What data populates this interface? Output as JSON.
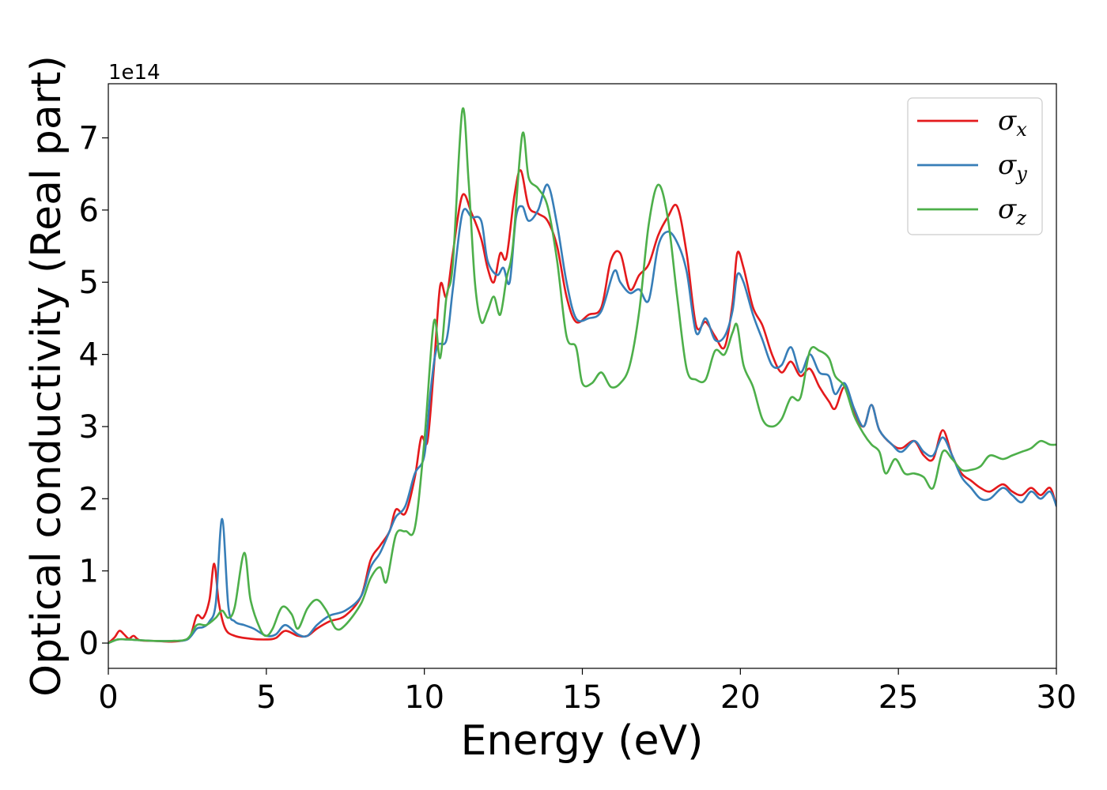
{
  "chart_data": {
    "type": "line",
    "xlabel": "Energy (eV)",
    "ylabel": "Optical conductivity (Real part)",
    "y_scale_label": "1e14",
    "y_multiplier": 100000000000000.0,
    "xlim": [
      0,
      30
    ],
    "ylim": [
      -0.35,
      7.75
    ],
    "xticks": [
      0,
      5,
      10,
      15,
      20,
      25,
      30
    ],
    "yticks": [
      0,
      1,
      2,
      3,
      4,
      5,
      6,
      7
    ],
    "grid": false,
    "legend_position": "top-right",
    "series": [
      {
        "name": "σx",
        "symbol": "σ",
        "subscript": "x",
        "color": "#e41a1c",
        "points": [
          [
            0,
            0
          ],
          [
            0.2,
            0.08
          ],
          [
            0.35,
            0.17
          ],
          [
            0.5,
            0.12
          ],
          [
            0.65,
            0.06
          ],
          [
            0.8,
            0.1
          ],
          [
            1.0,
            0.04
          ],
          [
            1.5,
            0.03
          ],
          [
            2.0,
            0.02
          ],
          [
            2.4,
            0.04
          ],
          [
            2.6,
            0.1
          ],
          [
            2.8,
            0.38
          ],
          [
            3.0,
            0.35
          ],
          [
            3.2,
            0.6
          ],
          [
            3.35,
            1.1
          ],
          [
            3.5,
            0.55
          ],
          [
            3.7,
            0.2
          ],
          [
            4.0,
            0.1
          ],
          [
            4.5,
            0.06
          ],
          [
            5.0,
            0.05
          ],
          [
            5.3,
            0.07
          ],
          [
            5.6,
            0.17
          ],
          [
            6.0,
            0.1
          ],
          [
            6.3,
            0.1
          ],
          [
            6.6,
            0.2
          ],
          [
            7.0,
            0.3
          ],
          [
            7.5,
            0.38
          ],
          [
            8.0,
            0.65
          ],
          [
            8.3,
            1.15
          ],
          [
            8.6,
            1.35
          ],
          [
            8.9,
            1.55
          ],
          [
            9.1,
            1.85
          ],
          [
            9.4,
            1.8
          ],
          [
            9.7,
            2.3
          ],
          [
            9.9,
            2.85
          ],
          [
            10.1,
            2.8
          ],
          [
            10.3,
            3.8
          ],
          [
            10.5,
            4.95
          ],
          [
            10.7,
            4.8
          ],
          [
            10.9,
            5.4
          ],
          [
            11.2,
            6.2
          ],
          [
            11.5,
            5.95
          ],
          [
            11.8,
            5.6
          ],
          [
            12.0,
            5.2
          ],
          [
            12.2,
            5.0
          ],
          [
            12.4,
            5.4
          ],
          [
            12.6,
            5.35
          ],
          [
            12.85,
            6.2
          ],
          [
            13.05,
            6.55
          ],
          [
            13.3,
            6.05
          ],
          [
            13.6,
            5.95
          ],
          [
            13.9,
            5.85
          ],
          [
            14.2,
            5.5
          ],
          [
            14.5,
            4.8
          ],
          [
            14.8,
            4.45
          ],
          [
            15.2,
            4.55
          ],
          [
            15.6,
            4.65
          ],
          [
            15.9,
            5.3
          ],
          [
            16.2,
            5.4
          ],
          [
            16.5,
            4.9
          ],
          [
            16.8,
            5.1
          ],
          [
            17.1,
            5.25
          ],
          [
            17.4,
            5.65
          ],
          [
            17.7,
            5.9
          ],
          [
            18.0,
            6.05
          ],
          [
            18.3,
            5.4
          ],
          [
            18.6,
            4.4
          ],
          [
            18.9,
            4.45
          ],
          [
            19.2,
            4.25
          ],
          [
            19.5,
            4.1
          ],
          [
            19.75,
            4.7
          ],
          [
            19.9,
            5.4
          ],
          [
            20.1,
            5.2
          ],
          [
            20.4,
            4.65
          ],
          [
            20.7,
            4.4
          ],
          [
            21.0,
            4.0
          ],
          [
            21.3,
            3.75
          ],
          [
            21.6,
            3.9
          ],
          [
            21.9,
            3.7
          ],
          [
            22.2,
            3.8
          ],
          [
            22.5,
            3.55
          ],
          [
            22.8,
            3.35
          ],
          [
            23.0,
            3.25
          ],
          [
            23.3,
            3.55
          ],
          [
            23.6,
            3.2
          ],
          [
            23.9,
            3.0
          ],
          [
            24.15,
            3.3
          ],
          [
            24.4,
            2.95
          ],
          [
            24.8,
            2.75
          ],
          [
            25.1,
            2.7
          ],
          [
            25.5,
            2.8
          ],
          [
            25.8,
            2.6
          ],
          [
            26.1,
            2.55
          ],
          [
            26.4,
            2.95
          ],
          [
            26.7,
            2.6
          ],
          [
            27.0,
            2.35
          ],
          [
            27.3,
            2.25
          ],
          [
            27.6,
            2.15
          ],
          [
            27.9,
            2.1
          ],
          [
            28.3,
            2.2
          ],
          [
            28.6,
            2.1
          ],
          [
            28.9,
            2.05
          ],
          [
            29.2,
            2.15
          ],
          [
            29.5,
            2.05
          ],
          [
            29.8,
            2.15
          ],
          [
            30.0,
            1.9
          ]
        ]
      },
      {
        "name": "σy",
        "symbol": "σ",
        "subscript": "y",
        "color": "#377eb8",
        "points": [
          [
            0,
            0
          ],
          [
            0.3,
            0.05
          ],
          [
            0.6,
            0.05
          ],
          [
            1.0,
            0.04
          ],
          [
            1.5,
            0.03
          ],
          [
            2.0,
            0.03
          ],
          [
            2.5,
            0.05
          ],
          [
            2.8,
            0.2
          ],
          [
            3.0,
            0.22
          ],
          [
            3.2,
            0.3
          ],
          [
            3.4,
            0.55
          ],
          [
            3.6,
            1.72
          ],
          [
            3.8,
            0.5
          ],
          [
            4.0,
            0.3
          ],
          [
            4.3,
            0.25
          ],
          [
            4.6,
            0.2
          ],
          [
            5.0,
            0.1
          ],
          [
            5.3,
            0.12
          ],
          [
            5.6,
            0.25
          ],
          [
            6.0,
            0.12
          ],
          [
            6.3,
            0.1
          ],
          [
            6.6,
            0.25
          ],
          [
            7.0,
            0.38
          ],
          [
            7.5,
            0.45
          ],
          [
            8.0,
            0.65
          ],
          [
            8.3,
            1.05
          ],
          [
            8.6,
            1.25
          ],
          [
            8.9,
            1.55
          ],
          [
            9.1,
            1.75
          ],
          [
            9.4,
            1.9
          ],
          [
            9.7,
            2.35
          ],
          [
            10.0,
            2.6
          ],
          [
            10.2,
            3.5
          ],
          [
            10.4,
            4.1
          ],
          [
            10.7,
            4.2
          ],
          [
            10.9,
            4.9
          ],
          [
            11.2,
            5.95
          ],
          [
            11.5,
            5.9
          ],
          [
            11.8,
            5.85
          ],
          [
            12.0,
            5.3
          ],
          [
            12.3,
            5.1
          ],
          [
            12.5,
            5.2
          ],
          [
            12.7,
            5.0
          ],
          [
            12.9,
            5.9
          ],
          [
            13.1,
            6.05
          ],
          [
            13.3,
            5.85
          ],
          [
            13.6,
            6.0
          ],
          [
            13.9,
            6.35
          ],
          [
            14.2,
            5.8
          ],
          [
            14.5,
            5.0
          ],
          [
            14.8,
            4.5
          ],
          [
            15.2,
            4.5
          ],
          [
            15.6,
            4.6
          ],
          [
            16.0,
            5.15
          ],
          [
            16.2,
            5.0
          ],
          [
            16.5,
            4.85
          ],
          [
            16.8,
            4.9
          ],
          [
            17.1,
            4.75
          ],
          [
            17.4,
            5.5
          ],
          [
            17.7,
            5.7
          ],
          [
            18.0,
            5.55
          ],
          [
            18.3,
            5.15
          ],
          [
            18.6,
            4.3
          ],
          [
            18.9,
            4.5
          ],
          [
            19.2,
            4.2
          ],
          [
            19.5,
            4.25
          ],
          [
            19.75,
            4.6
          ],
          [
            19.9,
            5.1
          ],
          [
            20.1,
            5.0
          ],
          [
            20.4,
            4.55
          ],
          [
            20.7,
            4.2
          ],
          [
            21.0,
            3.85
          ],
          [
            21.3,
            3.85
          ],
          [
            21.6,
            4.1
          ],
          [
            21.9,
            3.75
          ],
          [
            22.2,
            4.0
          ],
          [
            22.5,
            3.75
          ],
          [
            22.8,
            3.7
          ],
          [
            23.0,
            3.45
          ],
          [
            23.3,
            3.6
          ],
          [
            23.6,
            3.25
          ],
          [
            23.9,
            3.0
          ],
          [
            24.15,
            3.3
          ],
          [
            24.4,
            2.95
          ],
          [
            24.8,
            2.75
          ],
          [
            25.1,
            2.65
          ],
          [
            25.5,
            2.8
          ],
          [
            25.8,
            2.65
          ],
          [
            26.1,
            2.6
          ],
          [
            26.4,
            2.85
          ],
          [
            26.7,
            2.6
          ],
          [
            27.0,
            2.3
          ],
          [
            27.3,
            2.15
          ],
          [
            27.6,
            2.0
          ],
          [
            27.9,
            2.0
          ],
          [
            28.3,
            2.15
          ],
          [
            28.6,
            2.05
          ],
          [
            28.9,
            1.95
          ],
          [
            29.2,
            2.1
          ],
          [
            29.5,
            2.0
          ],
          [
            29.8,
            2.1
          ],
          [
            30.0,
            1.9
          ]
        ]
      },
      {
        "name": "σz",
        "symbol": "σ",
        "subscript": "z",
        "color": "#4daf4a",
        "points": [
          [
            0,
            0
          ],
          [
            0.3,
            0.05
          ],
          [
            0.6,
            0.05
          ],
          [
            1.0,
            0.04
          ],
          [
            1.5,
            0.03
          ],
          [
            2.0,
            0.03
          ],
          [
            2.5,
            0.06
          ],
          [
            2.8,
            0.25
          ],
          [
            3.1,
            0.25
          ],
          [
            3.4,
            0.35
          ],
          [
            3.6,
            0.45
          ],
          [
            3.8,
            0.35
          ],
          [
            4.0,
            0.5
          ],
          [
            4.3,
            1.25
          ],
          [
            4.5,
            0.6
          ],
          [
            4.8,
            0.2
          ],
          [
            5.0,
            0.1
          ],
          [
            5.2,
            0.2
          ],
          [
            5.5,
            0.5
          ],
          [
            5.8,
            0.4
          ],
          [
            6.0,
            0.2
          ],
          [
            6.3,
            0.48
          ],
          [
            6.6,
            0.6
          ],
          [
            6.9,
            0.45
          ],
          [
            7.2,
            0.2
          ],
          [
            7.5,
            0.25
          ],
          [
            8.0,
            0.55
          ],
          [
            8.3,
            0.9
          ],
          [
            8.6,
            1.05
          ],
          [
            8.8,
            0.85
          ],
          [
            9.1,
            1.5
          ],
          [
            9.4,
            1.55
          ],
          [
            9.7,
            1.6
          ],
          [
            10.0,
            2.8
          ],
          [
            10.3,
            4.45
          ],
          [
            10.5,
            3.95
          ],
          [
            10.7,
            4.8
          ],
          [
            10.9,
            5.25
          ],
          [
            11.2,
            7.38
          ],
          [
            11.4,
            6.4
          ],
          [
            11.6,
            5.0
          ],
          [
            11.8,
            4.45
          ],
          [
            12.0,
            4.6
          ],
          [
            12.2,
            4.8
          ],
          [
            12.4,
            4.55
          ],
          [
            12.6,
            5.05
          ],
          [
            12.8,
            5.5
          ],
          [
            13.1,
            7.05
          ],
          [
            13.3,
            6.45
          ],
          [
            13.6,
            6.3
          ],
          [
            13.9,
            6.05
          ],
          [
            14.2,
            5.3
          ],
          [
            14.5,
            4.25
          ],
          [
            14.8,
            4.1
          ],
          [
            15.0,
            3.6
          ],
          [
            15.3,
            3.6
          ],
          [
            15.6,
            3.75
          ],
          [
            15.9,
            3.55
          ],
          [
            16.2,
            3.6
          ],
          [
            16.5,
            3.85
          ],
          [
            16.8,
            4.6
          ],
          [
            17.1,
            5.8
          ],
          [
            17.4,
            6.35
          ],
          [
            17.7,
            5.9
          ],
          [
            18.0,
            4.8
          ],
          [
            18.3,
            3.8
          ],
          [
            18.6,
            3.65
          ],
          [
            18.9,
            3.65
          ],
          [
            19.2,
            4.05
          ],
          [
            19.5,
            4.0
          ],
          [
            19.75,
            4.3
          ],
          [
            19.9,
            4.4
          ],
          [
            20.1,
            3.85
          ],
          [
            20.4,
            3.55
          ],
          [
            20.7,
            3.1
          ],
          [
            21.0,
            3.0
          ],
          [
            21.3,
            3.1
          ],
          [
            21.6,
            3.4
          ],
          [
            21.9,
            3.4
          ],
          [
            22.2,
            4.05
          ],
          [
            22.5,
            4.05
          ],
          [
            22.8,
            3.95
          ],
          [
            23.0,
            3.7
          ],
          [
            23.3,
            3.55
          ],
          [
            23.6,
            3.15
          ],
          [
            23.9,
            2.9
          ],
          [
            24.15,
            2.75
          ],
          [
            24.4,
            2.65
          ],
          [
            24.6,
            2.35
          ],
          [
            24.9,
            2.55
          ],
          [
            25.2,
            2.35
          ],
          [
            25.5,
            2.35
          ],
          [
            25.8,
            2.3
          ],
          [
            26.1,
            2.15
          ],
          [
            26.4,
            2.65
          ],
          [
            26.7,
            2.55
          ],
          [
            27.0,
            2.4
          ],
          [
            27.3,
            2.4
          ],
          [
            27.6,
            2.45
          ],
          [
            27.9,
            2.6
          ],
          [
            28.3,
            2.55
          ],
          [
            28.6,
            2.6
          ],
          [
            28.9,
            2.65
          ],
          [
            29.2,
            2.7
          ],
          [
            29.5,
            2.8
          ],
          [
            29.8,
            2.75
          ],
          [
            30.0,
            2.75
          ]
        ]
      }
    ]
  }
}
